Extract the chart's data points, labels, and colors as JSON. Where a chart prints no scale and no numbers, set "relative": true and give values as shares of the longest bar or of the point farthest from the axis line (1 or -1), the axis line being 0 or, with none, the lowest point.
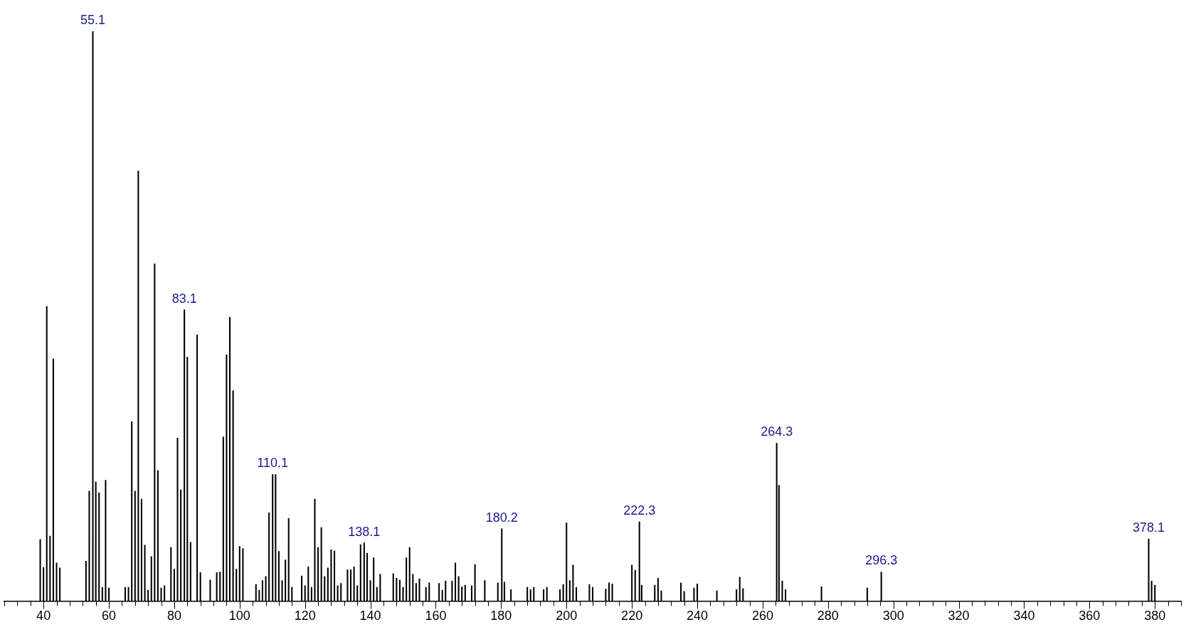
{
  "chart_data": {
    "type": "bar",
    "relative": true,
    "x": [
      39,
      40,
      41,
      42,
      43,
      44,
      45,
      53,
      54,
      55.1,
      56,
      57,
      58,
      59,
      60,
      65,
      66,
      67,
      68,
      69,
      70,
      71,
      72,
      73,
      74,
      75,
      76,
      77,
      79,
      80,
      81,
      82,
      83.1,
      84,
      85,
      87,
      88,
      91,
      93,
      94,
      95,
      96,
      97,
      98,
      99,
      100,
      101,
      105,
      106,
      107,
      108,
      109,
      110.1,
      111,
      112,
      113,
      114,
      115,
      116,
      119,
      120,
      121,
      122,
      123,
      124,
      125,
      126,
      127,
      128,
      129,
      130,
      131,
      133,
      134,
      135,
      136,
      137,
      138.1,
      139,
      140,
      141,
      142,
      143,
      147,
      148,
      149,
      150,
      151,
      152,
      153,
      154,
      155,
      157,
      158,
      161,
      162,
      163,
      165,
      166,
      167,
      168,
      169,
      171,
      172,
      175,
      179,
      180.2,
      181,
      183,
      188,
      189,
      190,
      193,
      194,
      198,
      199,
      200,
      201,
      202,
      203,
      207,
      208,
      212,
      213,
      214,
      220,
      221,
      222.3,
      223,
      227,
      228,
      229,
      235,
      236,
      239,
      240,
      246,
      252,
      253,
      254,
      264.3,
      265,
      266,
      267,
      278,
      292,
      296.3,
      378.1,
      379,
      380
    ],
    "values": [
      0.108,
      0.059,
      0.517,
      0.114,
      0.425,
      0.067,
      0.058,
      0.07,
      0.193,
      1,
      0.209,
      0.19,
      0.024,
      0.212,
      0.023,
      0.024,
      0.024,
      0.315,
      0.193,
      0.755,
      0.179,
      0.098,
      0.019,
      0.078,
      0.592,
      0.229,
      0.023,
      0.027,
      0.094,
      0.056,
      0.286,
      0.195,
      0.511,
      0.428,
      0.103,
      0.467,
      0.05,
      0.037,
      0.05,
      0.051,
      0.288,
      0.432,
      0.498,
      0.369,
      0.056,
      0.096,
      0.092,
      0.029,
      0.019,
      0.036,
      0.043,
      0.155,
      0.222,
      0.222,
      0.087,
      0.036,
      0.072,
      0.145,
      0.024,
      0.044,
      0.027,
      0.06,
      0.024,
      0.179,
      0.094,
      0.129,
      0.043,
      0.058,
      0.09,
      0.088,
      0.027,
      0.031,
      0.055,
      0.055,
      0.06,
      0.027,
      0.099,
      0.102,
      0.084,
      0.036,
      0.076,
      0.024,
      0.047,
      0.048,
      0.04,
      0.037,
      0.024,
      0.076,
      0.094,
      0.047,
      0.031,
      0.039,
      0.024,
      0.032,
      0.031,
      0.019,
      0.035,
      0.035,
      0.067,
      0.043,
      0.025,
      0.028,
      0.027,
      0.064,
      0.036,
      0.032,
      0.127,
      0.033,
      0.02,
      0.024,
      0.02,
      0.024,
      0.02,
      0.024,
      0.02,
      0.029,
      0.137,
      0.036,
      0.063,
      0.024,
      0.029,
      0.024,
      0.021,
      0.032,
      0.03,
      0.063,
      0.054,
      0.139,
      0.028,
      0.028,
      0.04,
      0.018,
      0.032,
      0.017,
      0.023,
      0.03,
      0.018,
      0.02,
      0.042,
      0.022,
      0.277,
      0.203,
      0.035,
      0.02,
      0.025,
      0.023,
      0.051,
      0.109,
      0.035,
      0.028
    ],
    "color": "#000000",
    "xlim": [
      28,
      388
    ],
    "xticks": [
      {
        "value": 28,
        "label": null
      },
      {
        "value": 32,
        "label": null
      },
      {
        "value": 36,
        "label": null
      },
      40,
      {
        "value": 44,
        "label": null
      },
      {
        "value": 48,
        "label": null
      },
      {
        "value": 52,
        "label": null
      },
      {
        "value": 56,
        "label": null
      },
      60,
      {
        "value": 64,
        "label": null
      },
      {
        "value": 68,
        "label": null
      },
      {
        "value": 72,
        "label": null
      },
      {
        "value": 76,
        "label": null
      },
      80,
      {
        "value": 84,
        "label": null
      },
      {
        "value": 88,
        "label": null
      },
      {
        "value": 92,
        "label": null
      },
      {
        "value": 96,
        "label": null
      },
      100,
      {
        "value": 104,
        "label": null
      },
      {
        "value": 108,
        "label": null
      },
      {
        "value": 112,
        "label": null
      },
      {
        "value": 116,
        "label": null
      },
      120,
      {
        "value": 124,
        "label": null
      },
      {
        "value": 128,
        "label": null
      },
      {
        "value": 132,
        "label": null
      },
      {
        "value": 136,
        "label": null
      },
      140,
      {
        "value": 144,
        "label": null
      },
      {
        "value": 148,
        "label": null
      },
      {
        "value": 152,
        "label": null
      },
      {
        "value": 156,
        "label": null
      },
      160,
      {
        "value": 164,
        "label": null
      },
      {
        "value": 168,
        "label": null
      },
      {
        "value": 172,
        "label": null
      },
      {
        "value": 176,
        "label": null
      },
      180,
      {
        "value": 184,
        "label": null
      },
      {
        "value": 188,
        "label": null
      },
      {
        "value": 192,
        "label": null
      },
      {
        "value": 196,
        "label": null
      },
      200,
      {
        "value": 204,
        "label": null
      },
      {
        "value": 208,
        "label": null
      },
      {
        "value": 212,
        "label": null
      },
      {
        "value": 216,
        "label": null
      },
      220,
      {
        "value": 224,
        "label": null
      },
      {
        "value": 228,
        "label": null
      },
      {
        "value": 232,
        "label": null
      },
      {
        "value": 236,
        "label": null
      },
      240,
      {
        "value": 244,
        "label": null
      },
      {
        "value": 248,
        "label": null
      },
      {
        "value": 252,
        "label": null
      },
      {
        "value": 256,
        "label": null
      },
      260,
      {
        "value": 264,
        "label": null
      },
      {
        "value": 268,
        "label": null
      },
      {
        "value": 272,
        "label": null
      },
      {
        "value": 276,
        "label": null
      },
      280,
      {
        "value": 284,
        "label": null
      },
      {
        "value": 288,
        "label": null
      },
      {
        "value": 292,
        "label": null
      },
      {
        "value": 296,
        "label": null
      },
      300,
      {
        "value": 304,
        "label": null
      },
      {
        "value": 308,
        "label": null
      },
      {
        "value": 312,
        "label": null
      },
      {
        "value": 316,
        "label": null
      },
      320,
      {
        "value": 324,
        "label": null
      },
      {
        "value": 328,
        "label": null
      },
      {
        "value": 332,
        "label": null
      },
      {
        "value": 336,
        "label": null
      },
      340,
      {
        "value": 344,
        "label": null
      },
      {
        "value": 348,
        "label": null
      },
      {
        "value": 352,
        "label": null
      },
      {
        "value": 356,
        "label": null
      },
      360,
      {
        "value": 364,
        "label": null
      },
      {
        "value": 368,
        "label": null
      },
      {
        "value": 372,
        "label": null
      },
      {
        "value": 376,
        "label": null
      },
      380,
      {
        "value": 384,
        "label": null
      },
      {
        "value": 388,
        "label": null
      }
    ],
    "annotations": [
      {
        "text": "55.1",
        "x": 55.1,
        "y": 1
      },
      {
        "text": "83.1",
        "x": 83.1,
        "y": 0.511
      },
      {
        "text": "110.1",
        "x": 110.1,
        "y": 0.222
      },
      {
        "text": "138.1",
        "x": 138.1,
        "y": 0.102
      },
      {
        "text": "180.2",
        "x": 180.2,
        "y": 0.127
      },
      {
        "text": "222.3",
        "x": 222.3,
        "y": 0.139
      },
      {
        "text": "264.3",
        "x": 264.3,
        "y": 0.277
      },
      {
        "text": "296.3",
        "x": 296.3,
        "y": 0.051
      },
      {
        "text": "378.1",
        "x": 378.1,
        "y": 0.109
      }
    ]
  }
}
